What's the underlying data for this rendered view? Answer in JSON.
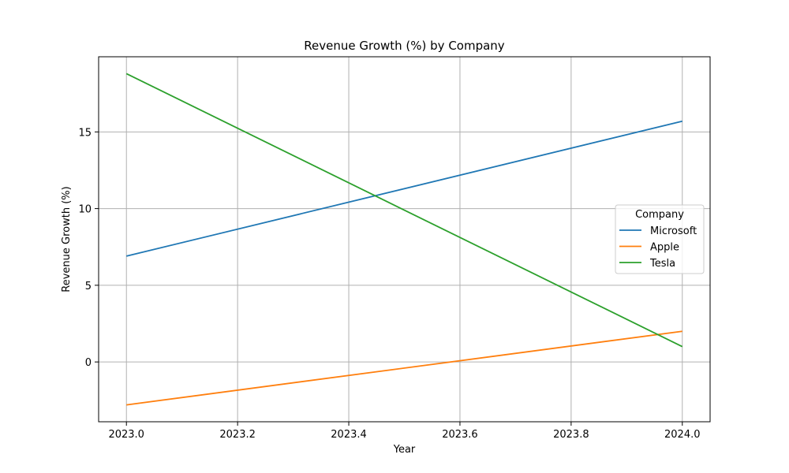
{
  "chart_data": {
    "type": "line",
    "title": "Revenue Growth (%) by Company",
    "xlabel": "Year",
    "ylabel": "Revenue Growth (%)",
    "x": [
      2023.0,
      2024.0
    ],
    "xlim": [
      2022.95,
      2024.05
    ],
    "ylim": [
      -3.9,
      19.9
    ],
    "xticks": [
      2023.0,
      2023.2,
      2023.4,
      2023.6,
      2023.8,
      2024.0
    ],
    "xtick_labels": [
      "2023.0",
      "2023.2",
      "2023.4",
      "2023.6",
      "2023.8",
      "2024.0"
    ],
    "yticks": [
      0,
      5,
      10,
      15
    ],
    "ytick_labels": [
      "0",
      "5",
      "10",
      "15"
    ],
    "grid": true,
    "legend": {
      "title": "Company",
      "placement": "center-right"
    },
    "series": [
      {
        "name": "Microsoft",
        "color": "#1f77b4",
        "values": [
          6.9,
          15.7
        ]
      },
      {
        "name": "Apple",
        "color": "#ff7f0e",
        "values": [
          -2.8,
          2.0
        ]
      },
      {
        "name": "Tesla",
        "color": "#2ca02c",
        "values": [
          18.8,
          1.0
        ]
      }
    ]
  }
}
